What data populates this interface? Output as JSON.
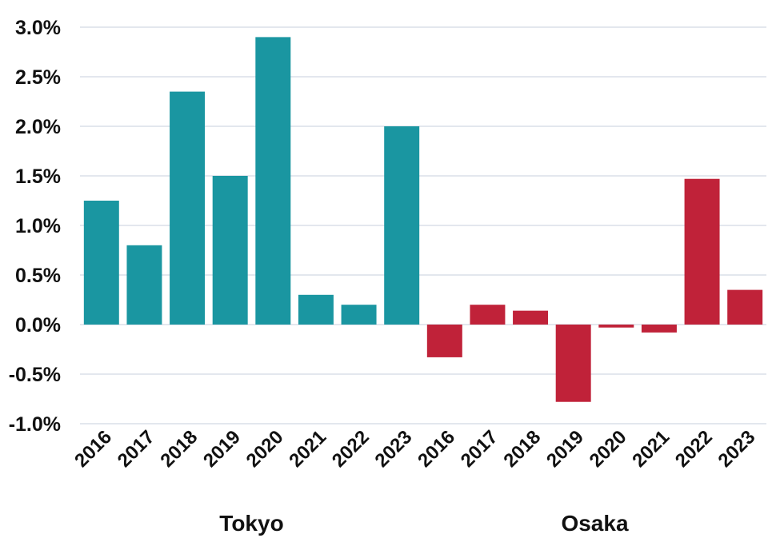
{
  "chart_data": {
    "type": "bar",
    "title": "",
    "xlabel": "",
    "ylabel": "",
    "ylim": [
      -1.0,
      3.0
    ],
    "y_ticks": [
      "3.0%",
      "2.5%",
      "2.0%",
      "1.5%",
      "1.0%",
      "0.5%",
      "0.0%",
      "-0.5%",
      "-1.0%"
    ],
    "y_tick_values": [
      3.0,
      2.5,
      2.0,
      1.5,
      1.0,
      0.5,
      0.0,
      -0.5,
      -1.0
    ],
    "grid": true,
    "legend": "none",
    "groups": [
      {
        "label": "Tokyo",
        "color": "#1a96a1",
        "categories": [
          "2016",
          "2017",
          "2018",
          "2019",
          "2020",
          "2021",
          "2022",
          "2023"
        ],
        "values": [
          1.25,
          0.8,
          2.35,
          1.5,
          2.9,
          0.3,
          0.2,
          2.0
        ]
      },
      {
        "label": "Osaka",
        "color": "#c02239",
        "categories": [
          "2016",
          "2017",
          "2018",
          "2019",
          "2020",
          "2021",
          "2022",
          "2023"
        ],
        "values": [
          -0.33,
          0.2,
          0.14,
          -0.78,
          -0.03,
          -0.08,
          1.47,
          0.35
        ]
      }
    ]
  }
}
